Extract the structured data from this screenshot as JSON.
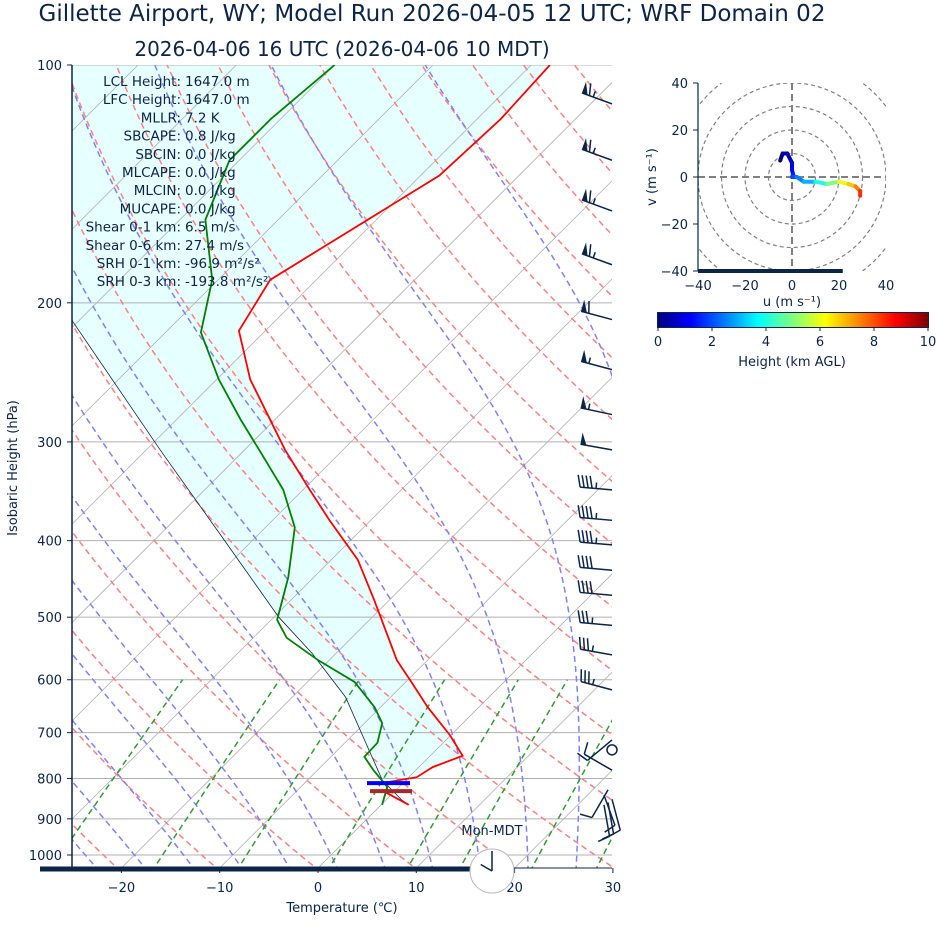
{
  "title": "Gillette  Airport, WY; Model Run 2026-04-05 12 UTC; WRF Domain 02",
  "subtitle": "2026-04-06 16 UTC  (2026-04-06 10 MDT)",
  "parameters": [
    {
      "label": "LCL Height:",
      "value": "1647.0 m"
    },
    {
      "label": "LFC Height:",
      "value": "1647.0 m"
    },
    {
      "label": "MLLR:",
      "value": "7.2 K"
    },
    {
      "label": "SBCAPE:",
      "value": "0.8 J/kg"
    },
    {
      "label": "SBCIN:",
      "value": "0.0 J/kg"
    },
    {
      "label": "MLCAPE:",
      "value": "0.0 J/kg"
    },
    {
      "label": "MLCIN:",
      "value": "0.0 J/kg"
    },
    {
      "label": "MUCAPE:",
      "value": "0.0 J/kg"
    },
    {
      "label": "Shear 0-1 km:",
      "value": "6.5 m/s"
    },
    {
      "label": "Shear 0-6 km:",
      "value": "27.4 m/s"
    },
    {
      "label": "SRH 0-1 km:",
      "value": "-96.9 m²/s²"
    },
    {
      "label": "SRH 0-3 km:",
      "value": "-193.8 m²/s²"
    }
  ],
  "clock": {
    "label": "Mon-MDT",
    "hour": 10,
    "minute": 0
  },
  "forecast_progress": 0.77,
  "chart_data": [
    {
      "type": "line",
      "name": "skew-T",
      "xlabel": "Temperature (℃)",
      "ylabel": "Isobaric Height (hPa)",
      "xlim": [
        -25,
        30
      ],
      "ylim": [
        1039,
        100
      ],
      "y_scale": "log",
      "xticks": [
        -20,
        -10,
        0,
        10,
        20,
        30
      ],
      "yticks": [
        100,
        200,
        300,
        400,
        500,
        600,
        700,
        800,
        900,
        1000
      ],
      "grid": true,
      "colors": {
        "temperature": "#ff0000",
        "dewpoint": "#008000",
        "parcel": "#0b2447",
        "shade": "#e6ffff",
        "dry_adiabat": "#ff8080",
        "moist_adiabat": "#8080ff",
        "mixing_ratio": "#339933",
        "isotherm": "#b0b0b0"
      },
      "temperature": [
        [
          864,
          2.8
        ],
        [
          835,
          -0.6
        ],
        [
          809,
          -1.7
        ],
        [
          797,
          0.8
        ],
        [
          774,
          1.4
        ],
        [
          749,
          3.3
        ],
        [
          705,
          -0.1
        ],
        [
          650,
          -5.2
        ],
        [
          600,
          -9.8
        ],
        [
          567,
          -13.1
        ],
        [
          476,
          -21.5
        ],
        [
          423,
          -27.3
        ],
        [
          377,
          -34.2
        ],
        [
          345,
          -39.3
        ],
        [
          307,
          -45.9
        ],
        [
          250,
          -56.6
        ],
        [
          217,
          -62.7
        ],
        [
          187,
          -64.7
        ],
        [
          138,
          -58.1
        ],
        [
          117,
          -57.6
        ],
        [
          100,
          -58.1
        ]
      ],
      "dewpoint": [
        [
          864,
          0.1
        ],
        [
          820,
          -1.2
        ],
        [
          781,
          -4.3
        ],
        [
          751,
          -6.6
        ],
        [
          721,
          -6.7
        ],
        [
          681,
          -8.2
        ],
        [
          650,
          -10.6
        ],
        [
          604,
          -15.2
        ],
        [
          567,
          -21.1
        ],
        [
          531,
          -26.6
        ],
        [
          504,
          -29.4
        ],
        [
          445,
          -32.6
        ],
        [
          385,
          -37.0
        ],
        [
          345,
          -42.0
        ],
        [
          316,
          -46.9
        ],
        [
          281,
          -53.5
        ],
        [
          250,
          -59.8
        ],
        [
          218,
          -66.4
        ],
        [
          187,
          -70.6
        ],
        [
          157,
          -77.4
        ],
        [
          132,
          -81.0
        ],
        [
          117,
          -81.0
        ],
        [
          100,
          -80.0
        ]
      ],
      "parcel": [
        [
          864,
          2.8
        ],
        [
          852,
          1.6
        ],
        [
          804,
          -2.4
        ],
        [
          631,
          -14.6
        ],
        [
          555,
          -22.5
        ],
        [
          500,
          -29.5
        ],
        [
          400,
          -42.8
        ],
        [
          307,
          -58.6
        ],
        [
          211,
          -80.6
        ],
        [
          171,
          -91.0
        ],
        [
          100,
          -115.0
        ]
      ],
      "markers": [
        {
          "p": 811,
          "color": "#0000ff"
        },
        {
          "p": 830,
          "color": "#a52a2a"
        }
      ],
      "wind_barbs_kt": [
        [
          112,
          65,
          290
        ],
        [
          132,
          65,
          290
        ],
        [
          153,
          65,
          290
        ],
        [
          179,
          65,
          290
        ],
        [
          210,
          60,
          285
        ],
        [
          243,
          55,
          285
        ],
        [
          277,
          55,
          282
        ],
        [
          307,
          50,
          280
        ],
        [
          345,
          45,
          275
        ],
        [
          377,
          45,
          275
        ],
        [
          405,
          45,
          275
        ],
        [
          436,
          40,
          275
        ],
        [
          469,
          40,
          275
        ],
        [
          512,
          35,
          275
        ],
        [
          558,
          35,
          280
        ],
        [
          618,
          35,
          285
        ],
        [
          715,
          10,
          230
        ],
        [
          736,
          0,
          0
        ],
        [
          781,
          10,
          300
        ],
        [
          827,
          10,
          210
        ],
        [
          840,
          10,
          160
        ],
        [
          850,
          10,
          165
        ],
        [
          858,
          10,
          170
        ],
        [
          864,
          10,
          170
        ]
      ]
    },
    {
      "type": "line",
      "name": "hodograph",
      "xlabel": "u (m s⁻¹)",
      "ylabel": "v (m s⁻¹)",
      "xlim": [
        -40,
        40
      ],
      "ylim": [
        -40,
        40
      ],
      "xticks": [
        -40,
        -20,
        0,
        20,
        40
      ],
      "yticks": [
        -40,
        -20,
        0,
        20,
        40
      ],
      "u": [
        -5,
        -4,
        -2,
        0,
        0,
        0.5,
        0,
        2,
        5,
        10,
        15,
        20,
        24,
        27,
        29,
        29
      ],
      "v": [
        7,
        10,
        10,
        6,
        3,
        1,
        0,
        0,
        -2,
        -2,
        -3,
        -2,
        -3,
        -4,
        -6,
        -8
      ],
      "height_km": [
        0,
        0.3,
        0.6,
        1,
        1.3,
        1.6,
        2,
        2.5,
        3,
        4,
        5,
        6,
        6.8,
        7.5,
        8.3,
        9
      ],
      "colorbar": {
        "label": "Height (km AGL)",
        "ticks": [
          0,
          2,
          4,
          6,
          8,
          10
        ],
        "range": [
          0,
          10
        ],
        "colormap": "jet"
      }
    }
  ]
}
